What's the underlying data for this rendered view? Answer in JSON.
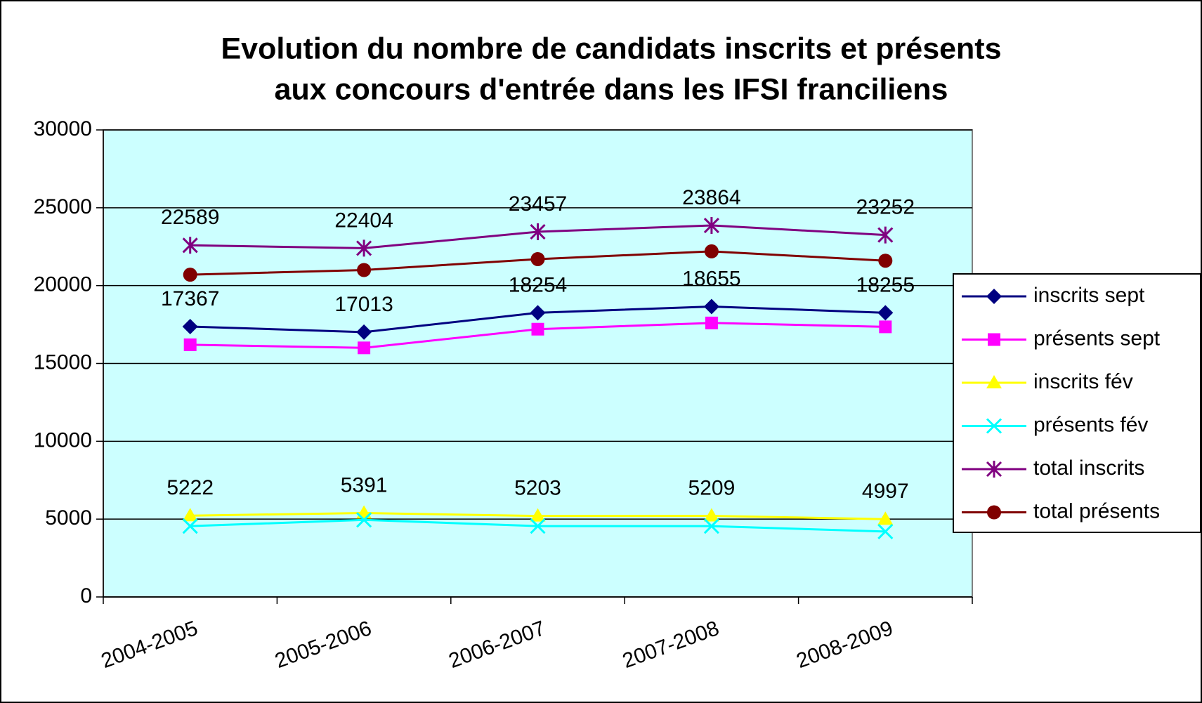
{
  "chart_data": {
    "type": "line",
    "title": "Evolution du nombre de candidats inscrits et présents",
    "subtitle": "aux concours d'entrée dans les IFSI franciliens",
    "categories": [
      "2004-2005",
      "2005-2006",
      "2006-2007",
      "2007-2008",
      "2008-2009"
    ],
    "series": [
      {
        "name": "inscrits sept",
        "color": "#000080",
        "marker": "diamond",
        "data_labels": true,
        "values": [
          17367,
          17013,
          18254,
          18655,
          18255
        ]
      },
      {
        "name": "présents sept",
        "color": "#ff00ff",
        "marker": "square",
        "data_labels": false,
        "values": [
          16200,
          16000,
          17200,
          17600,
          17350
        ]
      },
      {
        "name": "inscrits fév",
        "color": "#ffff00",
        "marker": "triangle",
        "data_labels": true,
        "values": [
          5222,
          5391,
          5203,
          5209,
          4997
        ]
      },
      {
        "name": "présents fév",
        "color": "#00ffff",
        "marker": "x",
        "data_labels": false,
        "values": [
          4550,
          4950,
          4550,
          4550,
          4200
        ]
      },
      {
        "name": "total inscrits",
        "color": "#800080",
        "marker": "asterisk",
        "data_labels": true,
        "values": [
          22589,
          22404,
          23457,
          23864,
          23252
        ]
      },
      {
        "name": "total présents",
        "color": "#800000",
        "marker": "circle",
        "data_labels": false,
        "values": [
          20700,
          21000,
          21700,
          22200,
          21600
        ]
      }
    ],
    "ylim": [
      0,
      30000
    ],
    "yticks": [
      0,
      5000,
      10000,
      15000,
      20000,
      25000,
      30000
    ],
    "grid": true,
    "legend": "right",
    "plot_background": "#ccffff"
  }
}
